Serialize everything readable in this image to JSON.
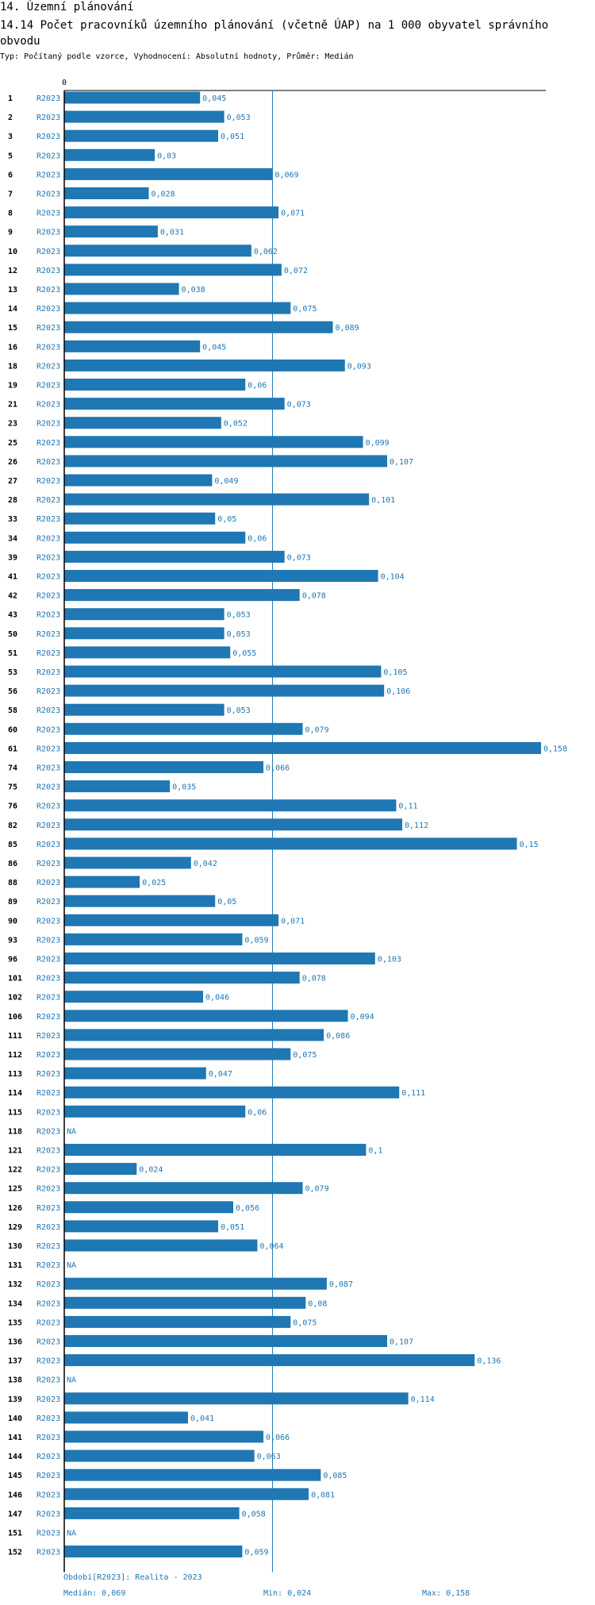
{
  "header": {
    "section": "14. Územní plánování",
    "title": "14.14 Počet pracovníků územního plánování (včetně ÚAP) na 1 000 obyvatel správního obvodu",
    "subtitle": "Typ: Počítaný podle vzorce, Vyhodnocení: Absolutní hodnoty, Průměr: Medián"
  },
  "footer": {
    "period": "Období[R2023]: Realita - 2023",
    "median": "Medián: 0,069",
    "min": "Min: 0,024",
    "max": "Max: 0,158"
  },
  "colors": {
    "bar": "#1f77b4",
    "text": "#000000",
    "median_line": "#1f77b4"
  },
  "chart_data": {
    "type": "bar",
    "orientation": "horizontal",
    "title": "14.14 Počet pracovníků územního plánování (včetně ÚAP) na 1 000 obyvatel správního obvodu",
    "xlim": [
      0,
      0.158
    ],
    "x_tick_labels": [
      "0"
    ],
    "series_label": "R2023",
    "median": 0.069,
    "na_label": "NA",
    "categories": [
      "1",
      "2",
      "3",
      "5",
      "6",
      "7",
      "8",
      "9",
      "10",
      "12",
      "13",
      "14",
      "15",
      "16",
      "18",
      "19",
      "21",
      "23",
      "25",
      "26",
      "27",
      "28",
      "33",
      "34",
      "39",
      "41",
      "42",
      "43",
      "50",
      "51",
      "53",
      "56",
      "58",
      "60",
      "61",
      "74",
      "75",
      "76",
      "82",
      "85",
      "86",
      "88",
      "89",
      "90",
      "93",
      "96",
      "101",
      "102",
      "106",
      "111",
      "112",
      "113",
      "114",
      "115",
      "118",
      "121",
      "122",
      "125",
      "126",
      "129",
      "130",
      "131",
      "132",
      "134",
      "135",
      "136",
      "137",
      "138",
      "139",
      "140",
      "141",
      "144",
      "145",
      "146",
      "147",
      "151",
      "152"
    ],
    "values": [
      0.045,
      0.053,
      0.051,
      0.03,
      0.069,
      0.028,
      0.071,
      0.031,
      0.062,
      0.072,
      0.038,
      0.075,
      0.089,
      0.045,
      0.093,
      0.06,
      0.073,
      0.052,
      0.099,
      0.107,
      0.049,
      0.101,
      0.05,
      0.06,
      0.073,
      0.104,
      0.078,
      0.053,
      0.053,
      0.055,
      0.105,
      0.106,
      0.053,
      0.079,
      0.158,
      0.066,
      0.035,
      0.11,
      0.112,
      0.15,
      0.042,
      0.025,
      0.05,
      0.071,
      0.059,
      0.103,
      0.078,
      0.046,
      0.094,
      0.086,
      0.075,
      0.047,
      0.111,
      0.06,
      null,
      0.1,
      0.024,
      0.079,
      0.056,
      0.051,
      0.064,
      null,
      0.087,
      0.08,
      0.075,
      0.107,
      0.136,
      null,
      0.114,
      0.041,
      0.066,
      0.063,
      0.085,
      0.081,
      0.058,
      null,
      0.059
    ],
    "value_labels": [
      "0,045",
      "0,053",
      "0,051",
      "0,03",
      "0,069",
      "0,028",
      "0,071",
      "0,031",
      "0,062",
      "0,072",
      "0,038",
      "0,075",
      "0,089",
      "0,045",
      "0,093",
      "0,06",
      "0,073",
      "0,052",
      "0,099",
      "0,107",
      "0,049",
      "0,101",
      "0,05",
      "0,06",
      "0,073",
      "0,104",
      "0,078",
      "0,053",
      "0,053",
      "0,055",
      "0,105",
      "0,106",
      "0,053",
      "0,079",
      "0,158",
      "0,066",
      "0,035",
      "0,11",
      "0,112",
      "0,15",
      "0,042",
      "0,025",
      "0,05",
      "0,071",
      "0,059",
      "0,103",
      "0,078",
      "0,046",
      "0,094",
      "0,086",
      "0,075",
      "0,047",
      "0,111",
      "0,06",
      "NA",
      "0,1",
      "0,024",
      "0,079",
      "0,056",
      "0,051",
      "0,064",
      "NA",
      "0,087",
      "0,08",
      "0,075",
      "0,107",
      "0,136",
      "NA",
      "0,114",
      "0,041",
      "0,066",
      "0,063",
      "0,085",
      "0,081",
      "0,058",
      "NA",
      "0,059"
    ]
  }
}
